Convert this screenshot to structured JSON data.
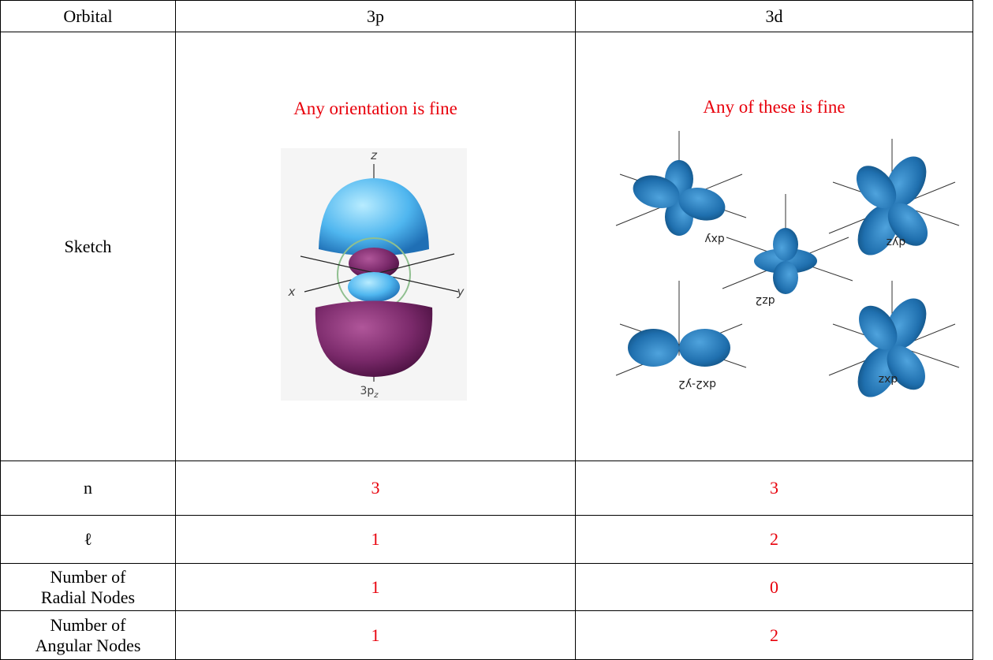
{
  "table": {
    "header": [
      "Orbital",
      "3p",
      "3d"
    ],
    "sketch": {
      "label": "Sketch",
      "p": {
        "note": "Any orientation is fine",
        "axis_labels": [
          "z",
          "x",
          "y"
        ],
        "caption": "3p",
        "caption_sub": "z"
      },
      "d": {
        "note": "Any of these is fine",
        "captions": [
          "dxy",
          "dyz",
          "dz2",
          "dx2-y2",
          "dxz"
        ]
      }
    },
    "rows": [
      [
        [
          "n"
        ],
        "3",
        "3"
      ],
      [
        [
          "ℓ"
        ],
        "1",
        "2"
      ],
      [
        [
          "Number of",
          "Radial Nodes"
        ],
        "1",
        "0"
      ],
      [
        [
          "Number of",
          "Angular Nodes"
        ],
        "1",
        "2"
      ]
    ]
  }
}
